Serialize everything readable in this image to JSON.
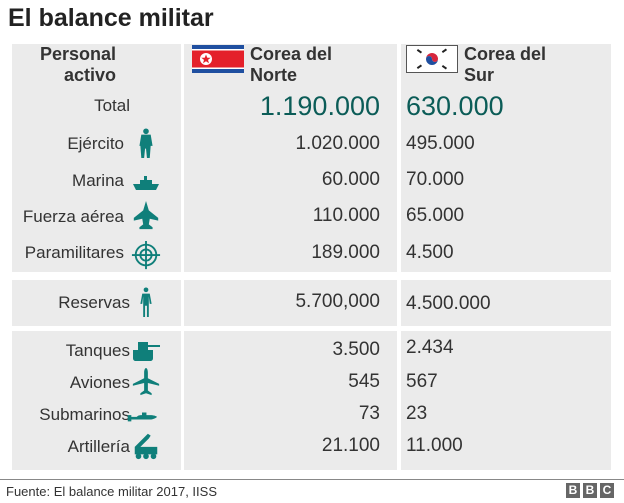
{
  "title": "El balance militar",
  "header": {
    "category": "Personal activo",
    "north": "Corea del Norte",
    "south": "Corea del Sur"
  },
  "colors": {
    "accent": "#0f7f7a",
    "total": "#0b5c57",
    "panel": "#ebebeb"
  },
  "rows": [
    {
      "label": "Total",
      "icon": "",
      "north": "1.190.000",
      "south": "630.000"
    },
    {
      "label": "Ejército",
      "icon": "soldier-icon",
      "north": "1.020.000",
      "south": "495.000"
    },
    {
      "label": "Marina",
      "icon": "ship-icon",
      "north": "60.000",
      "south": "70.000"
    },
    {
      "label": "Fuerza aérea",
      "icon": "fighter-jet-icon",
      "north": "110.000",
      "south": "65.000"
    },
    {
      "label": "Paramilitares",
      "icon": "crosshair-icon",
      "north": "189.000",
      "south": "4.500"
    },
    {
      "label": "Reservas",
      "icon": "person-icon",
      "north": "5.700,000",
      "south": "4.500.000"
    },
    {
      "label": "Tanques",
      "icon": "tank-icon",
      "north": "3.500",
      "south": "2.434"
    },
    {
      "label": "Aviones",
      "icon": "airplane-icon",
      "north": "545",
      "south": "567"
    },
    {
      "label": "Submarinos",
      "icon": "submarine-icon",
      "north": "73",
      "south": "23"
    },
    {
      "label": "Artillería",
      "icon": "artillery-icon",
      "north": "21.100",
      "south": "11.000"
    }
  ],
  "chart_data": {
    "type": "table",
    "columns": [
      "Personal activo",
      "Corea del Norte",
      "Corea del Sur"
    ]
  },
  "footer": {
    "source": "Fuente: El balance militar 2017, IISS",
    "logo": "BBC"
  }
}
